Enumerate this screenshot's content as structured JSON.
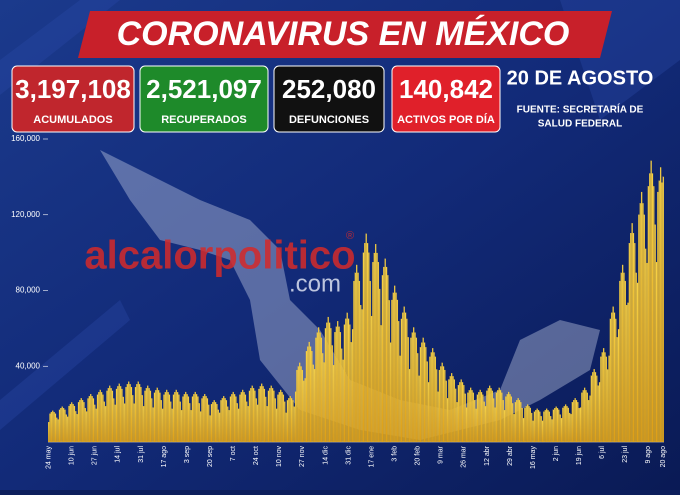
{
  "header": {
    "title": "CORONAVIRUS EN MÉXICO",
    "stats": [
      {
        "value": "3,197,108",
        "label": "ACUMULADOS",
        "color": "#c0262d"
      },
      {
        "value": "2,521,097",
        "label": "RECUPERADOS",
        "color": "#1e8a2a"
      },
      {
        "value": "252,080",
        "label": "DEFUNCIONES",
        "color": "#111111"
      },
      {
        "value": "140,842",
        "label": "ACTIVOS POR DÍA",
        "color": "#e0202a"
      }
    ],
    "date": "20 DE AGOSTO",
    "source": [
      "FUENTE: SECRETARÍA DE",
      "SALUD FEDERAL"
    ],
    "watermark": "alcalorpolitico",
    "watermark_mark": "®",
    "watermark_sub": ".com"
  },
  "chart_data": {
    "type": "bar",
    "color": "#f2c230",
    "ylim": [
      0,
      160000
    ],
    "yticks": [
      {
        "value": 40000,
        "label": "40,000"
      },
      {
        "value": 80000,
        "label": "80,000"
      },
      {
        "value": 120000,
        "label": "120,000"
      },
      {
        "value": 160000,
        "label": "160,000"
      }
    ],
    "categories": [
      "24 may",
      null,
      null,
      null,
      null,
      null,
      null,
      null,
      null,
      null,
      null,
      null,
      null,
      null,
      null,
      null,
      null,
      "10 jun",
      null,
      null,
      null,
      null,
      null,
      null,
      null,
      null,
      null,
      null,
      null,
      null,
      null,
      null,
      null,
      null,
      "27 jun",
      null,
      null,
      null,
      null,
      null,
      null,
      null,
      null,
      null,
      null,
      null,
      null,
      null,
      null,
      null,
      null,
      "14 jul",
      null,
      null,
      null,
      null,
      null,
      null,
      null,
      null,
      null,
      null,
      null,
      null,
      null,
      null,
      null,
      null,
      "31 jul",
      null,
      null,
      null,
      null,
      null,
      null,
      null,
      null,
      null,
      null,
      null,
      null,
      null,
      null,
      null,
      null,
      "17 ago",
      null,
      null,
      null,
      null,
      null,
      null,
      null,
      null,
      null,
      null,
      null,
      null,
      null,
      null,
      null,
      null,
      "3 sep",
      null,
      null,
      null,
      null,
      null,
      null,
      null,
      null,
      null,
      null,
      null,
      null,
      null,
      null,
      null,
      null,
      "20 sep",
      null,
      null,
      null,
      null,
      null,
      null,
      null,
      null,
      null,
      null,
      null,
      null,
      null,
      null,
      null,
      null,
      "7 oct",
      null,
      null,
      null,
      null,
      null,
      null,
      null,
      null,
      null,
      null,
      null,
      null,
      null,
      null,
      null,
      null,
      "24 oct",
      null,
      null,
      null,
      null,
      null,
      null,
      null,
      null,
      null,
      null,
      null,
      null,
      null,
      null,
      null,
      null,
      "10 nov",
      null,
      null,
      null,
      null,
      null,
      null,
      null,
      null,
      null,
      null,
      null,
      null,
      null,
      null,
      null,
      null,
      "27 nov",
      null,
      null,
      null,
      null,
      null,
      null,
      null,
      null,
      null,
      null,
      null,
      null,
      null,
      null,
      null,
      null,
      "14 dic",
      null,
      null,
      null,
      null,
      null,
      null,
      null,
      null,
      null,
      null,
      null,
      null,
      null,
      null,
      null,
      null,
      "31 dic",
      null,
      null,
      null,
      null,
      null,
      null,
      null,
      null,
      null,
      null,
      null,
      null,
      null,
      null,
      null,
      null,
      "17 ene",
      null,
      null,
      null,
      null,
      null,
      null,
      null,
      null,
      null,
      null,
      null,
      null,
      null,
      null,
      null,
      null,
      "3 feb",
      null,
      null,
      null,
      null,
      null,
      null,
      null,
      null,
      null,
      null,
      null,
      null,
      null,
      null,
      null,
      null,
      "20 feb",
      null,
      null,
      null,
      null,
      null,
      null,
      null,
      null,
      null,
      null,
      null,
      null,
      null,
      null,
      null,
      null,
      "9 mar",
      null,
      null,
      null,
      null,
      null,
      null,
      null,
      null,
      null,
      null,
      null,
      null,
      null,
      null,
      null,
      null,
      "26 mar",
      null,
      null,
      null,
      null,
      null,
      null,
      null,
      null,
      null,
      null,
      null,
      null,
      null,
      null,
      null,
      null,
      "12 abr",
      null,
      null,
      null,
      null,
      null,
      null,
      null,
      null,
      null,
      null,
      null,
      null,
      null,
      null,
      null,
      null,
      "29 abr",
      null,
      null,
      null,
      null,
      null,
      null,
      null,
      null,
      null,
      null,
      null,
      null,
      null,
      null,
      null,
      null,
      "16 may",
      null,
      null,
      null,
      null,
      null,
      null,
      null,
      null,
      null,
      null,
      null,
      null,
      null,
      null,
      null,
      null,
      "2 jun",
      null,
      null,
      null,
      null,
      null,
      null,
      null,
      null,
      null,
      null,
      null,
      null,
      null,
      null,
      null,
      null,
      "19 jun",
      null,
      null,
      null,
      null,
      null,
      null,
      null,
      null,
      null,
      null,
      null,
      null,
      null,
      null,
      null,
      null,
      "6 jul",
      null,
      null,
      null,
      null,
      null,
      null,
      null,
      null,
      null,
      null,
      null,
      null,
      null,
      null,
      null,
      null,
      "23 jul",
      null,
      null,
      null,
      null,
      null,
      null,
      null,
      null,
      null,
      null,
      null,
      null,
      null,
      null,
      null,
      null,
      "9 ago",
      null,
      null,
      null,
      null,
      null,
      null,
      null,
      null,
      null,
      null,
      "20 ago"
    ],
    "values": [
      10500,
      15000,
      15800,
      16500,
      15800,
      15000,
      12800,
      11900,
      17000,
      17900,
      18700,
      17900,
      17000,
      14500,
      13300,
      19000,
      20000,
      20900,
      20000,
      19000,
      16200,
      14700,
      21000,
      22100,
      23100,
      22100,
      21000,
      17900,
      16100,
      23000,
      24200,
      25300,
      24200,
      23000,
      19600,
      17500,
      25000,
      26300,
      27500,
      26300,
      25000,
      21300,
      18900,
      27000,
      28400,
      29700,
      28400,
      27000,
      23000,
      19600,
      28000,
      29400,
      30800,
      29400,
      28000,
      23800,
      20300,
      29000,
      30500,
      31900,
      30500,
      29000,
      24700,
      20300,
      29000,
      30500,
      31900,
      30500,
      29000,
      24700,
      18900,
      27000,
      28400,
      29700,
      28400,
      27000,
      23000,
      18200,
      26000,
      27300,
      28600,
      27300,
      26000,
      22100,
      17500,
      25000,
      26300,
      27500,
      26300,
      25000,
      21300,
      17500,
      25000,
      26300,
      27500,
      26300,
      25000,
      21300,
      16800,
      24000,
      25200,
      26400,
      25200,
      24000,
      20400,
      16800,
      24000,
      25200,
      26400,
      25200,
      24000,
      20400,
      16100,
      23000,
      24200,
      25300,
      24200,
      23000,
      19600,
      14000,
      20000,
      21000,
      22000,
      21000,
      20000,
      17000,
      15400,
      22000,
      23100,
      24200,
      23100,
      22000,
      18700,
      16800,
      24000,
      25200,
      26400,
      25200,
      24000,
      20400,
      17500,
      25000,
      26300,
      27500,
      26300,
      25000,
      21300,
      18900,
      27000,
      28400,
      29700,
      28400,
      27000,
      23000,
      19600,
      28000,
      29400,
      30800,
      29400,
      28000,
      23800,
      18900,
      27000,
      28400,
      29700,
      28400,
      27000,
      23000,
      17500,
      25000,
      26300,
      27500,
      26300,
      25000,
      21300,
      15400,
      22000,
      23100,
      24200,
      23100,
      22000,
      18700,
      26600,
      38000,
      39900,
      41800,
      39900,
      38000,
      32300,
      33600,
      48000,
      50400,
      52800,
      50400,
      48000,
      40800,
      38500,
      55000,
      57800,
      60500,
      57800,
      55000,
      46800,
      42000,
      60000,
      63000,
      66000,
      63000,
      60000,
      51000,
      40600,
      58000,
      60900,
      63800,
      60900,
      58000,
      49300,
      43400,
      62000,
      65100,
      68200,
      65100,
      62000,
      52700,
      59500,
      85000,
      89300,
      93500,
      89300,
      85000,
      72300,
      70000,
      100000,
      105000,
      110000,
      105000,
      100000,
      85000,
      66500,
      95000,
      99800,
      104500,
      99800,
      95000,
      80800,
      61600,
      88000,
      92400,
      96800,
      92400,
      88000,
      74800,
      52500,
      75000,
      78800,
      82500,
      78800,
      75000,
      63800,
      45500,
      65000,
      68300,
      71500,
      68300,
      65000,
      55300,
      38500,
      55000,
      57800,
      60500,
      57800,
      55000,
      46800,
      35000,
      50000,
      52500,
      55000,
      52500,
      50000,
      42500,
      31500,
      45000,
      47300,
      49500,
      47300,
      45000,
      38300,
      26600,
      38000,
      39900,
      41800,
      39900,
      38000,
      32300,
      23100,
      33000,
      34700,
      36300,
      34700,
      33000,
      28100,
      21000,
      30000,
      31500,
      33000,
      31500,
      30000,
      25500,
      18200,
      26000,
      27300,
      28600,
      27300,
      26000,
      22100,
      17500,
      25000,
      26300,
      27500,
      26300,
      25000,
      21300,
      18900,
      27000,
      28400,
      29700,
      28400,
      27000,
      23000,
      18200,
      26000,
      27300,
      28600,
      27300,
      26000,
      22100,
      16800,
      24000,
      25200,
      26400,
      25200,
      24000,
      20400,
      14700,
      21000,
      22100,
      23100,
      22100,
      21000,
      17900,
      12600,
      18000,
      18900,
      19800,
      18900,
      18000,
      15300,
      11200,
      16000,
      16800,
      17600,
      16800,
      16000,
      13600,
      11200,
      16000,
      16800,
      17600,
      16800,
      16000,
      13600,
      11900,
      17000,
      17900,
      18700,
      17900,
      17000,
      14500,
      12600,
      18000,
      18900,
      19800,
      18900,
      18000,
      15300,
      14700,
      21000,
      22100,
      23100,
      22100,
      21000,
      17900,
      18200,
      26000,
      27300,
      28600,
      27300,
      26000,
      22100,
      24500,
      35000,
      36800,
      38500,
      36800,
      35000,
      29800,
      31500,
      45000,
      47300,
      49500,
      47300,
      45000,
      38300,
      45500,
      65000,
      68300,
      71500,
      68300,
      65000,
      55300,
      59500,
      85000,
      89300,
      93500,
      89300,
      85000,
      72300,
      73500,
      105000,
      110300,
      115500,
      110300,
      105000,
      89300,
      84000,
      120000,
      126000,
      132000,
      126000,
      120000,
      102000,
      94500,
      135000,
      141800,
      148500,
      141800,
      135000,
      114800,
      95000,
      132000,
      138000,
      145000,
      137000,
      140000
    ]
  }
}
